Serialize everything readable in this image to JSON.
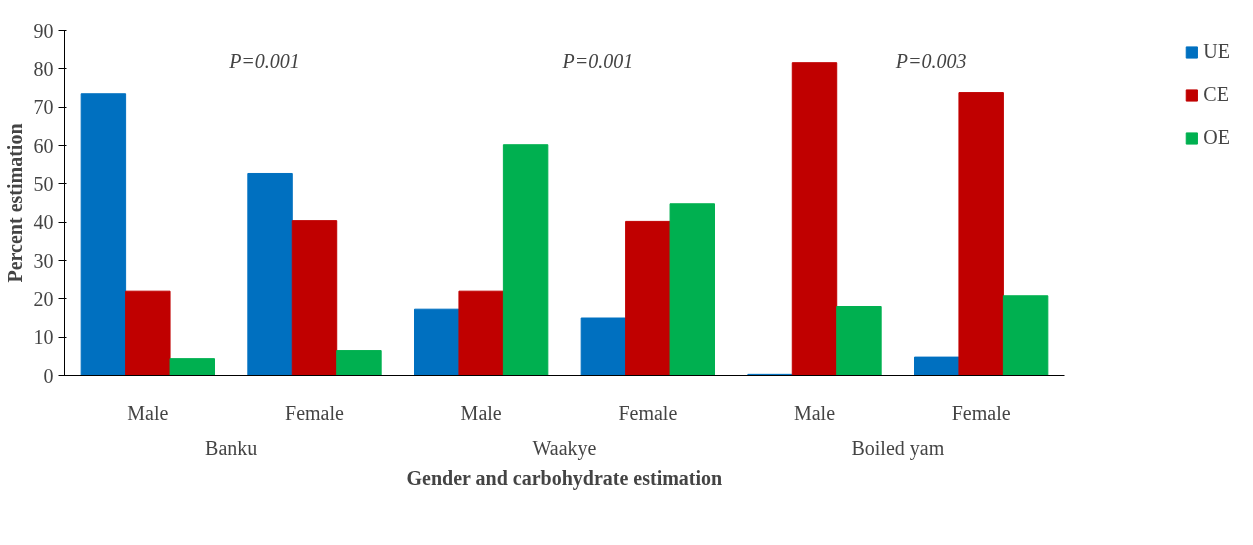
{
  "chart_data": {
    "type": "bar",
    "xlabel": "Gender and carbohydrate estimation",
    "ylabel": "Percent estimation",
    "categories": [
      "Male",
      "Female",
      "Male",
      "Female",
      "Male",
      "Female"
    ],
    "series": [
      {
        "name": "UE",
        "color": "#0070c0",
        "values": [
          73.5,
          52.7,
          17.3,
          15,
          0.3,
          4.8
        ]
      },
      {
        "name": "CE",
        "color": "#c00000",
        "values": [
          22,
          40.4,
          22,
          40.2,
          81.6,
          73.8
        ]
      },
      {
        "name": "OE",
        "color": "#00b050",
        "values": [
          4.4,
          6.5,
          60.2,
          44.8,
          18,
          20.8
        ]
      }
    ],
    "ylim": [
      0,
      90
    ],
    "yticks": [
      0,
      10,
      20,
      30,
      40,
      50,
      60,
      70,
      80,
      90
    ],
    "grid": false,
    "legend": "right",
    "annotations": [
      "Banku",
      "Waakye",
      "Boiled yam",
      "P=0.001",
      "P=0.001",
      "P=0.003"
    ]
  }
}
